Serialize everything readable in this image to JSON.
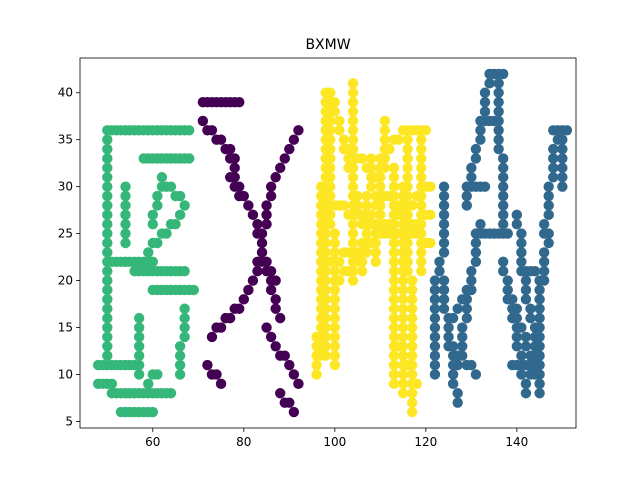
{
  "chart_data": {
    "type": "scatter",
    "title": "BXMW",
    "xlabel": "",
    "ylabel": "",
    "xlim": [
      44,
      153
    ],
    "ylim": [
      4.3,
      43.7
    ],
    "x_ticks": [
      60,
      80,
      100,
      120,
      140
    ],
    "y_ticks": [
      5,
      10,
      15,
      20,
      25,
      30,
      35,
      40
    ],
    "grid": false,
    "legend": "none",
    "series": [
      {
        "letter": "B",
        "color": "#35b779",
        "strokes": [
          [
            [
              50.0,
              36.0
            ],
            [
              66.0,
              36.0
            ]
          ],
          [
            [
              50.0,
              35.0
            ],
            [
              50.0,
              12.0
            ]
          ],
          [
            [
              48.0,
              11.0
            ],
            [
              57.0,
              11.0
            ]
          ],
          [
            [
              48.0,
              9.0
            ],
            [
              51.0,
              9.0
            ]
          ],
          [
            [
              51.0,
              8.0
            ],
            [
              64.0,
              8.0
            ]
          ],
          [
            [
              53.0,
              6.0
            ],
            [
              60.0,
              6.0
            ]
          ],
          [
            [
              66.0,
              36.0
            ],
            [
              68.0,
              36.0
            ]
          ],
          [
            [
              58.0,
              33.0
            ],
            [
              68.0,
              33.0
            ]
          ],
          [
            [
              63.0,
              30.0
            ],
            [
              67.0,
              28.0
            ]
          ],
          [
            [
              66.0,
              27.0
            ],
            [
              59.0,
              23.0
            ]
          ],
          [
            [
              60.0,
              22.0
            ],
            [
              51.0,
              22.0
            ]
          ],
          [
            [
              56.0,
              21.0
            ],
            [
              67.0,
              21.0
            ]
          ],
          [
            [
              60.0,
              19.0
            ],
            [
              69.0,
              19.0
            ]
          ],
          [
            [
              67.0,
              17.0
            ],
            [
              66.0,
              10.0
            ]
          ],
          [
            [
              61.0,
              10.0
            ],
            [
              59.0,
              9.0
            ]
          ],
          [
            [
              54.0,
              30.0
            ],
            [
              54.0,
              24.0
            ]
          ],
          [
            [
              57.0,
              16.0
            ],
            [
              57.0,
              10.0
            ]
          ],
          [
            [
              62.0,
              31.0
            ],
            [
              60.0,
              26.0
            ]
          ]
        ],
        "step": 1
      },
      {
        "letter": "X",
        "color": "#440154",
        "strokes": [
          [
            [
              71.0,
              39.0
            ],
            [
              79.0,
              39.0
            ]
          ],
          [
            [
              71.0,
              37.0
            ],
            [
              78.0,
              33.0
            ]
          ],
          [
            [
              77.0,
              31.0
            ],
            [
              82.0,
              27.0
            ]
          ],
          [
            [
              82.0,
              27.0
            ],
            [
              88.0,
              16.0
            ]
          ],
          [
            [
              85.0,
              15.0
            ],
            [
              92.0,
              9.0
            ]
          ],
          [
            [
              88.0,
              8.0
            ],
            [
              91.0,
              6.0
            ]
          ],
          [
            [
              73.0,
              14.0
            ],
            [
              80.0,
              18.0
            ]
          ],
          [
            [
              80.0,
              18.0
            ],
            [
              84.0,
              22.0
            ]
          ],
          [
            [
              84.0,
              24.0
            ],
            [
              86.0,
              30.0
            ]
          ],
          [
            [
              86.0,
              30.0
            ],
            [
              92.0,
              36.0
            ]
          ],
          [
            [
              72.0,
              11.0
            ],
            [
              75.0,
              9.0
            ]
          ],
          [
            [
              83.0,
              22.0
            ],
            [
              87.0,
              20.0
            ]
          ],
          [
            [
              76.0,
              34.0
            ],
            [
              80.0,
              29.0
            ]
          ]
        ],
        "step": 1
      },
      {
        "letter": "M",
        "color": "#fde725",
        "strokes": [
          [
            [
              98.0,
              40.0
            ],
            [
              98.0,
              12.0
            ]
          ],
          [
            [
              99.0,
              40.0
            ],
            [
              100.0,
              11.0
            ]
          ],
          [
            [
              97.0,
              30.0
            ],
            [
              97.0,
              12.0
            ]
          ],
          [
            [
              100.0,
              39.0
            ],
            [
              104.0,
              30.0
            ]
          ],
          [
            [
              104.0,
              30.0
            ],
            [
              107.0,
              25.0
            ]
          ],
          [
            [
              107.0,
              25.0
            ],
            [
              111.0,
              33.0
            ]
          ],
          [
            [
              111.0,
              33.0
            ],
            [
              115.0,
              36.0
            ]
          ],
          [
            [
              115.0,
              36.0
            ],
            [
              120.0,
              36.0
            ]
          ],
          [
            [
              116.0,
              35.0
            ],
            [
              117.0,
              6.0
            ]
          ],
          [
            [
              113.0,
              32.0
            ],
            [
              113.0,
              9.0
            ]
          ],
          [
            [
              115.0,
              30.0
            ],
            [
              115.0,
              8.0
            ]
          ],
          [
            [
              102.0,
              35.0
            ],
            [
              118.0,
              25.0
            ]
          ],
          [
            [
              100.0,
              28.0
            ],
            [
              121.0,
              24.0
            ]
          ],
          [
            [
              99.0,
              22.0
            ],
            [
              121.0,
              27.0
            ]
          ],
          [
            [
              104.0,
              41.0
            ],
            [
              104.0,
              20.0
            ]
          ],
          [
            [
              119.0,
              35.0
            ],
            [
              119.0,
              21.0
            ]
          ],
          [
            [
              109.0,
              22.0
            ],
            [
              111.0,
              37.0
            ]
          ],
          [
            [
              106.0,
              21.0
            ],
            [
              108.0,
              33.0
            ]
          ],
          [
            [
              96.0,
              14.0
            ],
            [
              96.0,
              10.0
            ]
          ],
          [
            [
              114.0,
              13.0
            ],
            [
              118.0,
              9.0
            ]
          ],
          [
            [
              101.0,
              20.0
            ],
            [
              121.0,
              30.0
            ]
          ]
        ],
        "step": 1
      },
      {
        "letter": "W",
        "color": "#31688e",
        "strokes": [
          [
            [
              123.0,
              22.0
            ],
            [
              127.0,
              7.0
            ]
          ],
          [
            [
              122.0,
              20.0
            ],
            [
              122.0,
              10.0
            ]
          ],
          [
            [
              125.0,
              13.0
            ],
            [
              131.0,
              10.0
            ]
          ],
          [
            [
              127.0,
              11.0
            ],
            [
              132.0,
              26.0
            ]
          ],
          [
            [
              129.0,
              28.0
            ],
            [
              134.0,
              42.0
            ]
          ],
          [
            [
              134.0,
              42.0
            ],
            [
              137.0,
              42.0
            ]
          ],
          [
            [
              136.0,
              41.0
            ],
            [
              137.0,
              26.0
            ]
          ],
          [
            [
              131.0,
              25.0
            ],
            [
              138.0,
              25.0
            ]
          ],
          [
            [
              137.0,
              22.0
            ],
            [
              142.0,
              8.0
            ]
          ],
          [
            [
              139.0,
              11.0
            ],
            [
              145.0,
              11.0
            ]
          ],
          [
            [
              145.0,
              20.0
            ],
            [
              145.0,
              8.0
            ]
          ],
          [
            [
              143.0,
              10.0
            ],
            [
              147.0,
              25.0
            ]
          ],
          [
            [
              146.0,
              25.0
            ],
            [
              149.0,
              36.0
            ]
          ],
          [
            [
              148.0,
              36.0
            ],
            [
              151.0,
              36.0
            ]
          ],
          [
            [
              150.0,
              35.0
            ],
            [
              150.0,
              30.0
            ]
          ],
          [
            [
              124.0,
              30.0
            ],
            [
              124.0,
              23.0
            ]
          ],
          [
            [
              129.0,
              30.0
            ],
            [
              133.0,
              30.0
            ]
          ],
          [
            [
              141.0,
              21.0
            ],
            [
              144.0,
              21.0
            ]
          ],
          [
            [
              140.0,
              27.0
            ],
            [
              143.0,
              16.0
            ]
          ],
          [
            [
              133.0,
              37.0
            ],
            [
              136.0,
              37.0
            ]
          ],
          [
            [
              126.0,
              16.0
            ],
            [
              130.0,
              20.0
            ]
          ],
          [
            [
              139.0,
              18.0
            ],
            [
              144.0,
              10.0
            ]
          ]
        ],
        "step": 1
      }
    ]
  }
}
